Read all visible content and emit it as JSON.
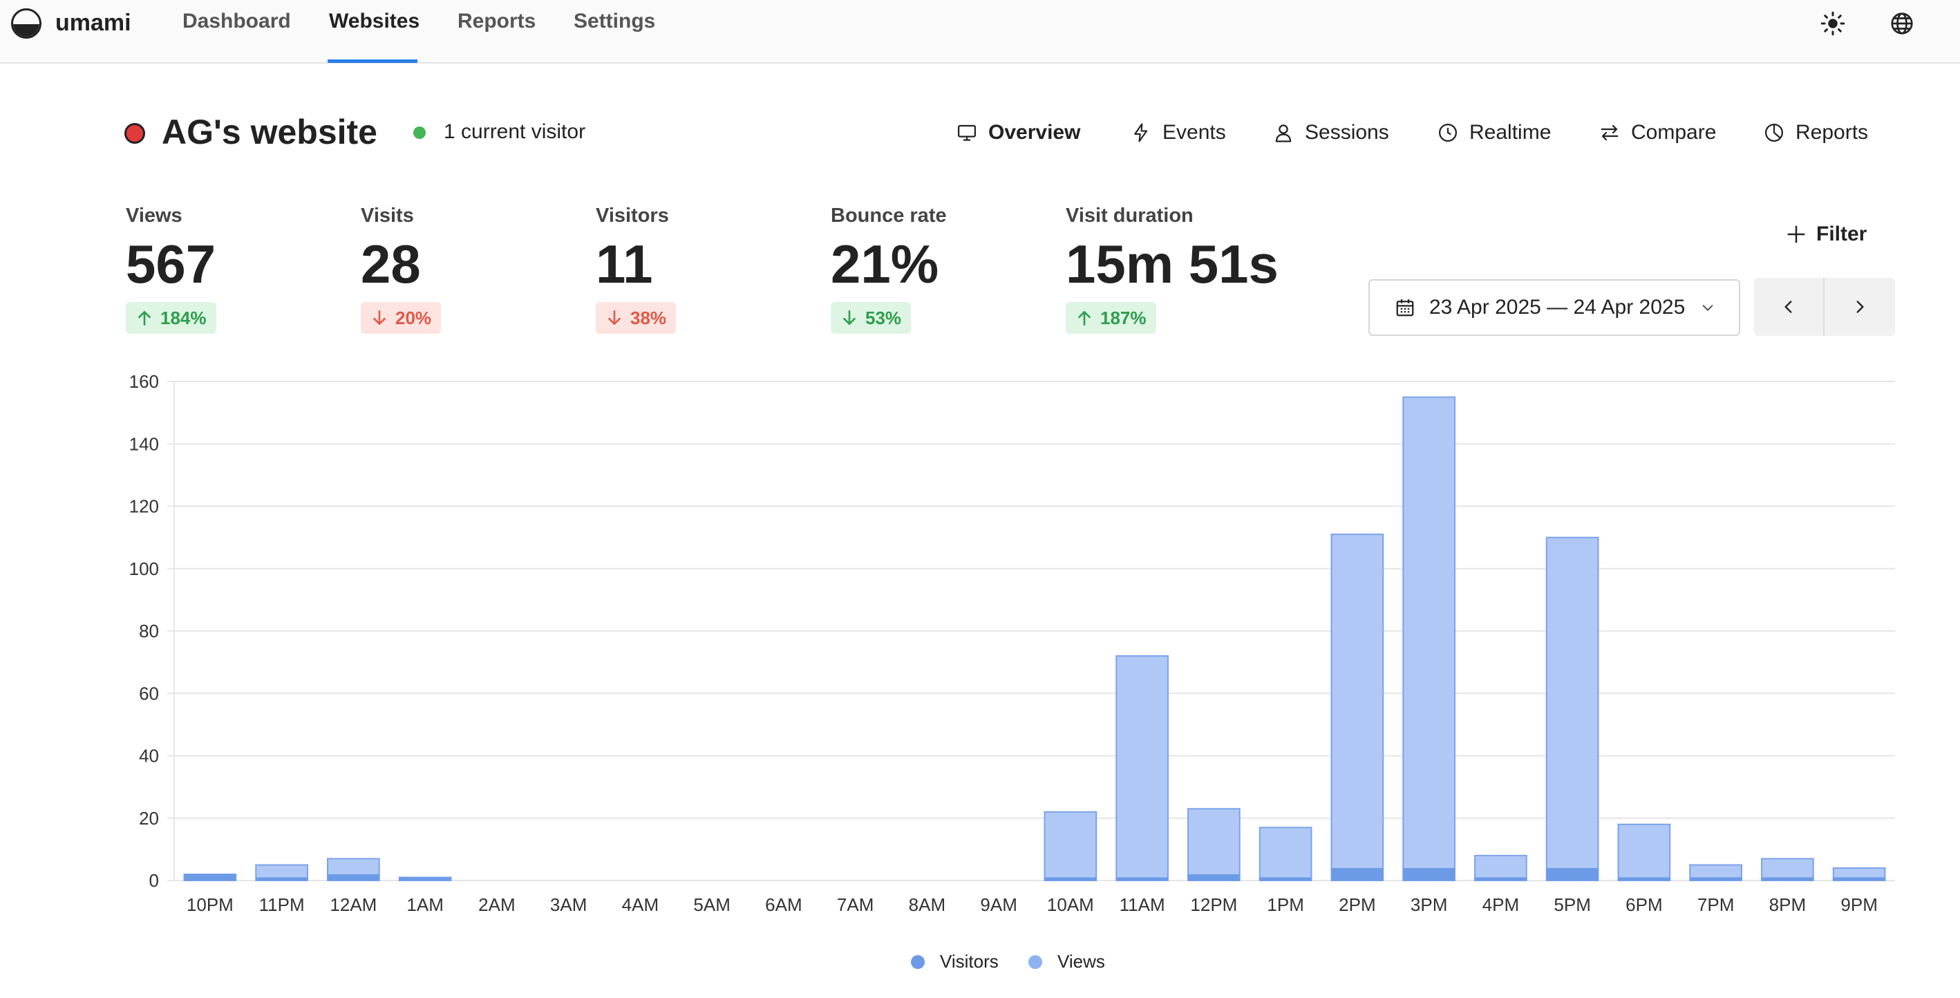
{
  "app": {
    "brand": "umami"
  },
  "nav": {
    "items": [
      "Dashboard",
      "Websites",
      "Reports",
      "Settings"
    ],
    "active": "Websites"
  },
  "site": {
    "title": "AG's website",
    "live": "1 current visitor"
  },
  "tabs": [
    {
      "label": "Overview",
      "icon": "monitor-icon",
      "active": true
    },
    {
      "label": "Events",
      "icon": "lightning-icon",
      "active": false
    },
    {
      "label": "Sessions",
      "icon": "user-icon",
      "active": false
    },
    {
      "label": "Realtime",
      "icon": "clock-icon",
      "active": false
    },
    {
      "label": "Compare",
      "icon": "compare-icon",
      "active": false
    },
    {
      "label": "Reports",
      "icon": "pie-icon",
      "active": false
    }
  ],
  "metrics": [
    {
      "label": "Views",
      "value": "567",
      "change": "184%",
      "direction": "up"
    },
    {
      "label": "Visits",
      "value": "28",
      "change": "20%",
      "direction": "down"
    },
    {
      "label": "Visitors",
      "value": "11",
      "change": "38%",
      "direction": "down"
    },
    {
      "label": "Bounce rate",
      "value": "21%",
      "change": "53%",
      "direction": "up"
    },
    {
      "label": "Visit duration",
      "value": "15m 51s",
      "change": "187%",
      "direction": "up"
    }
  ],
  "controls": {
    "filter_label": "Filter",
    "date_range": "23 Apr 2025 — 24 Apr 2025"
  },
  "colors": {
    "views_fill": "#afc8f5",
    "views_stroke": "#7da3ea",
    "visitors_fill": "#6b9ae6",
    "up_bg": "#dff5e4",
    "down_bg": "#fde4e1",
    "accent": "#2680eb"
  },
  "chart_data": {
    "type": "bar",
    "categories": [
      "10PM",
      "11PM",
      "12AM",
      "1AM",
      "2AM",
      "3AM",
      "4AM",
      "5AM",
      "6AM",
      "7AM",
      "8AM",
      "9AM",
      "10AM",
      "11AM",
      "12PM",
      "1PM",
      "2PM",
      "3PM",
      "4PM",
      "5PM",
      "6PM",
      "7PM",
      "8PM",
      "9PM"
    ],
    "series": [
      {
        "name": "Visitors",
        "values": [
          2,
          1,
          2,
          1,
          0,
          0,
          0,
          0,
          0,
          0,
          0,
          0,
          1,
          1,
          2,
          1,
          4,
          4,
          1,
          4,
          1,
          1,
          1,
          1
        ]
      },
      {
        "name": "Views",
        "values": [
          2,
          5,
          7,
          1,
          0,
          0,
          0,
          0,
          0,
          0,
          0,
          0,
          22,
          72,
          23,
          17,
          111,
          155,
          8,
          110,
          18,
          5,
          7,
          4
        ]
      }
    ],
    "yticks": [
      0,
      20,
      40,
      60,
      80,
      100,
      120,
      140,
      160
    ],
    "ylim": [
      0,
      160
    ],
    "grid": true,
    "legend": "bottom-center"
  }
}
